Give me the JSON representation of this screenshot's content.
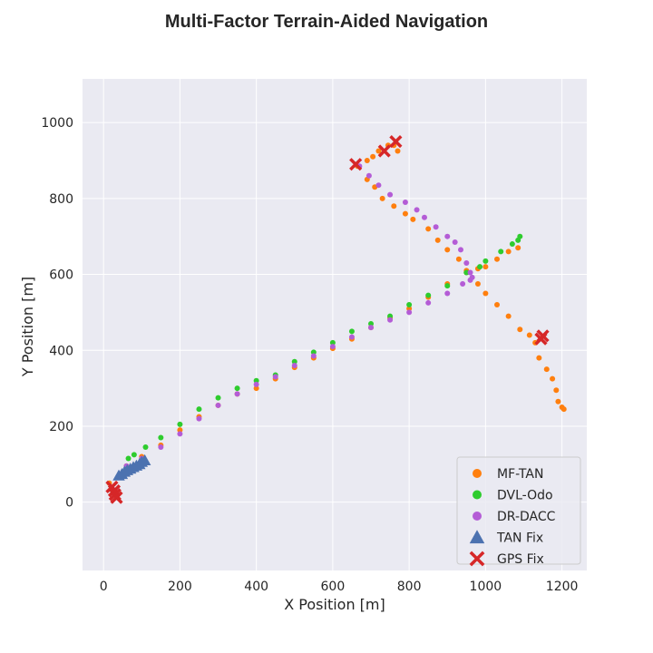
{
  "chart_data": {
    "type": "scatter",
    "title": "Multi-Factor Terrain-Aided Navigation",
    "xlabel": "X Position [m]",
    "ylabel": "Y Position [m]",
    "xlim": [
      -55,
      1265
    ],
    "ylim": [
      -180,
      1115
    ],
    "xticks": [
      0,
      200,
      400,
      600,
      800,
      1000,
      1200
    ],
    "yticks": [
      0,
      200,
      400,
      600,
      800,
      1000
    ],
    "grid": true,
    "legend_position": "lower-right",
    "background": "#eaeaf2",
    "series": [
      {
        "name": "MF-TAN",
        "marker": "circle",
        "color": "#ff7f0e",
        "points": [
          [
            15,
            50
          ],
          [
            40,
            70
          ],
          [
            60,
            95
          ],
          [
            100,
            120
          ],
          [
            150,
            150
          ],
          [
            200,
            190
          ],
          [
            250,
            225
          ],
          [
            300,
            255
          ],
          [
            350,
            285
          ],
          [
            400,
            300
          ],
          [
            450,
            325
          ],
          [
            500,
            355
          ],
          [
            550,
            380
          ],
          [
            600,
            405
          ],
          [
            650,
            430
          ],
          [
            700,
            460
          ],
          [
            750,
            485
          ],
          [
            800,
            510
          ],
          [
            850,
            540
          ],
          [
            900,
            575
          ],
          [
            950,
            605
          ],
          [
            980,
            615
          ],
          [
            1000,
            620
          ],
          [
            1030,
            640
          ],
          [
            1060,
            660
          ],
          [
            1085,
            670
          ],
          [
            665,
            885
          ],
          [
            690,
            850
          ],
          [
            710,
            830
          ],
          [
            730,
            800
          ],
          [
            760,
            780
          ],
          [
            790,
            760
          ],
          [
            810,
            745
          ],
          [
            850,
            720
          ],
          [
            875,
            690
          ],
          [
            900,
            665
          ],
          [
            930,
            640
          ],
          [
            950,
            610
          ],
          [
            980,
            575
          ],
          [
            1000,
            550
          ],
          [
            1030,
            520
          ],
          [
            1060,
            490
          ],
          [
            1090,
            455
          ],
          [
            1115,
            440
          ],
          [
            1130,
            420
          ],
          [
            1140,
            380
          ],
          [
            1160,
            350
          ],
          [
            1175,
            325
          ],
          [
            1185,
            295
          ],
          [
            1190,
            265
          ],
          [
            1200,
            250
          ],
          [
            1205,
            245
          ],
          [
            690,
            900
          ],
          [
            705,
            910
          ],
          [
            720,
            925
          ],
          [
            745,
            940
          ],
          [
            760,
            940
          ],
          [
            770,
            925
          ]
        ]
      },
      {
        "name": "DVL-Odo",
        "marker": "circle",
        "color": "#2ecc2e",
        "points": [
          [
            65,
            115
          ],
          [
            80,
            125
          ],
          [
            110,
            145
          ],
          [
            150,
            170
          ],
          [
            200,
            205
          ],
          [
            250,
            245
          ],
          [
            300,
            275
          ],
          [
            350,
            300
          ],
          [
            400,
            320
          ],
          [
            450,
            335
          ],
          [
            500,
            370
          ],
          [
            550,
            395
          ],
          [
            600,
            420
          ],
          [
            650,
            450
          ],
          [
            700,
            470
          ],
          [
            750,
            490
          ],
          [
            800,
            520
          ],
          [
            850,
            545
          ],
          [
            900,
            570
          ],
          [
            950,
            605
          ],
          [
            985,
            620
          ],
          [
            1000,
            635
          ],
          [
            1040,
            660
          ],
          [
            1070,
            680
          ],
          [
            1085,
            690
          ],
          [
            1090,
            700
          ]
        ]
      },
      {
        "name": "DR-DACC",
        "marker": "circle",
        "color": "#b45cd6",
        "points": [
          [
            60,
            95
          ],
          [
            100,
            115
          ],
          [
            150,
            145
          ],
          [
            200,
            180
          ],
          [
            250,
            220
          ],
          [
            300,
            255
          ],
          [
            350,
            285
          ],
          [
            400,
            310
          ],
          [
            450,
            330
          ],
          [
            500,
            360
          ],
          [
            550,
            385
          ],
          [
            600,
            410
          ],
          [
            650,
            435
          ],
          [
            700,
            460
          ],
          [
            750,
            480
          ],
          [
            800,
            500
          ],
          [
            850,
            525
          ],
          [
            900,
            550
          ],
          [
            940,
            575
          ],
          [
            960,
            585
          ],
          [
            965,
            592
          ],
          [
            670,
            885
          ],
          [
            695,
            860
          ],
          [
            720,
            835
          ],
          [
            750,
            810
          ],
          [
            790,
            790
          ],
          [
            820,
            770
          ],
          [
            840,
            750
          ],
          [
            870,
            725
          ],
          [
            900,
            700
          ],
          [
            920,
            685
          ],
          [
            935,
            665
          ],
          [
            950,
            630
          ],
          [
            960,
            605
          ]
        ]
      },
      {
        "name": "TAN Fix",
        "marker": "triangle",
        "color": "#4c72b0",
        "points": [
          [
            40,
            70
          ],
          [
            48,
            74
          ],
          [
            55,
            80
          ],
          [
            62,
            84
          ],
          [
            70,
            88
          ],
          [
            78,
            92
          ],
          [
            86,
            96
          ],
          [
            94,
            100
          ],
          [
            100,
            106
          ],
          [
            108,
            110
          ]
        ]
      },
      {
        "name": "GPS Fix",
        "marker": "x",
        "color": "#d62728",
        "points": [
          [
            22,
            40
          ],
          [
            28,
            30
          ],
          [
            30,
            20
          ],
          [
            34,
            12
          ],
          [
            660,
            890
          ],
          [
            735,
            925
          ],
          [
            765,
            950
          ],
          [
            1145,
            430
          ],
          [
            1150,
            438
          ]
        ]
      }
    ]
  }
}
